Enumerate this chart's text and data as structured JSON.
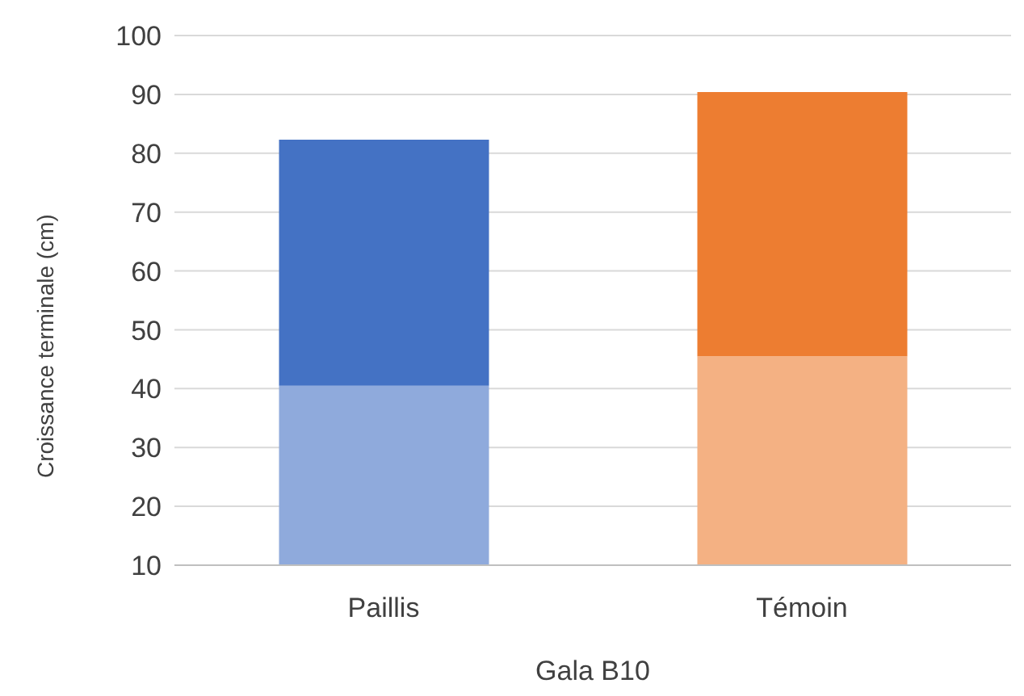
{
  "chart_data": {
    "type": "bar",
    "stacked": true,
    "ylabel": "Croissance terminale (cm)",
    "xlabel": "Gala B10",
    "categories": [
      "Paillis",
      "Témoin"
    ],
    "series": [
      {
        "colors": [
          "#8faadc",
          "#f4b183"
        ],
        "values": [
          40.5,
          45.5
        ]
      },
      {
        "colors": [
          "#4472c4",
          "#ed7d31"
        ],
        "values": [
          41.8,
          44.9
        ]
      }
    ],
    "ylim": [
      10,
      100
    ],
    "yticks": [
      10,
      20,
      30,
      40,
      50,
      60,
      70,
      80,
      90,
      100
    ],
    "grid": "y"
  }
}
